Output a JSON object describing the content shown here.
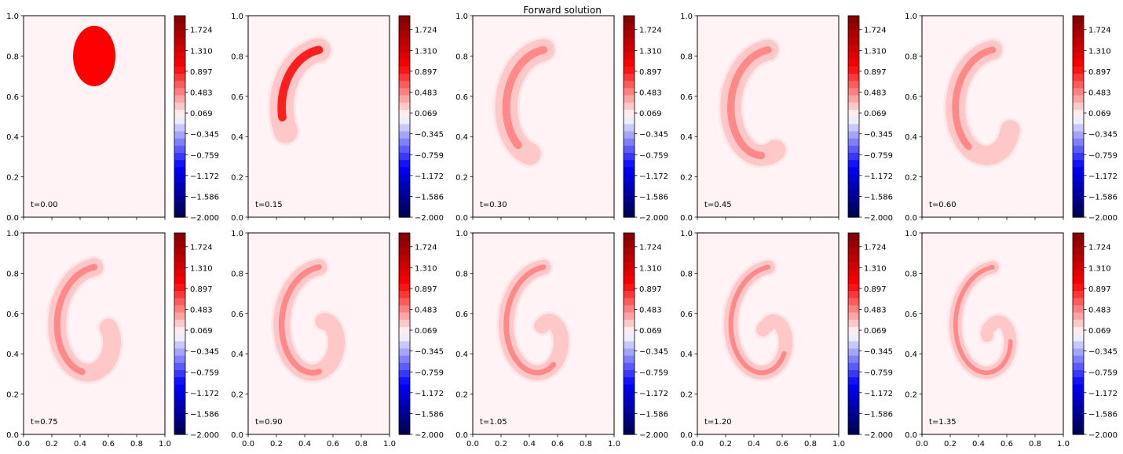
{
  "title": "Forward solution",
  "colormap": "seismic",
  "colors": {
    "frame": "#000000",
    "background": "#ffffff",
    "field_low": "#fff3f5",
    "field_mid": "#ffc8c8",
    "field_high": "#ff7c7c",
    "field_peak": "#ff0000"
  },
  "chart_data": {
    "type": "heatmap",
    "plot": "filled contour (contourf) grid, 2 rows x 5 columns",
    "xlim": [
      0,
      1
    ],
    "ylim": [
      0,
      1
    ],
    "x_ticks": [
      "0.0",
      "0.2",
      "0.4",
      "0.6",
      "0.8",
      "1.0"
    ],
    "y_ticks": [
      "0.0",
      "0.2",
      "0.4",
      "0.6",
      "0.8",
      "1.0"
    ],
    "colorbar": {
      "range": [
        -2.0,
        2.0
      ],
      "ticks": [
        "1.724",
        "1.310",
        "0.897",
        "0.483",
        "0.069",
        "−0.345",
        "−0.759",
        "−1.172",
        "−1.586",
        "−2.000"
      ],
      "tick_values": [
        1.724,
        1.31,
        0.897,
        0.483,
        0.069,
        -0.345,
        -0.759,
        -1.172,
        -1.586,
        -2.0
      ],
      "levels": 29
    },
    "panels": [
      {
        "label": "t=0.00",
        "time": 0.0
      },
      {
        "label": "t=0.15",
        "time": 0.15
      },
      {
        "label": "t=0.30",
        "time": 0.3
      },
      {
        "label": "t=0.45",
        "time": 0.45
      },
      {
        "label": "t=0.60",
        "time": 0.6
      },
      {
        "label": "t=0.75",
        "time": 0.75
      },
      {
        "label": "t=0.90",
        "time": 0.9
      },
      {
        "label": "t=1.05",
        "time": 1.05
      },
      {
        "label": "t=1.20",
        "time": 1.2
      },
      {
        "label": "t=1.35",
        "time": 1.35
      }
    ]
  }
}
